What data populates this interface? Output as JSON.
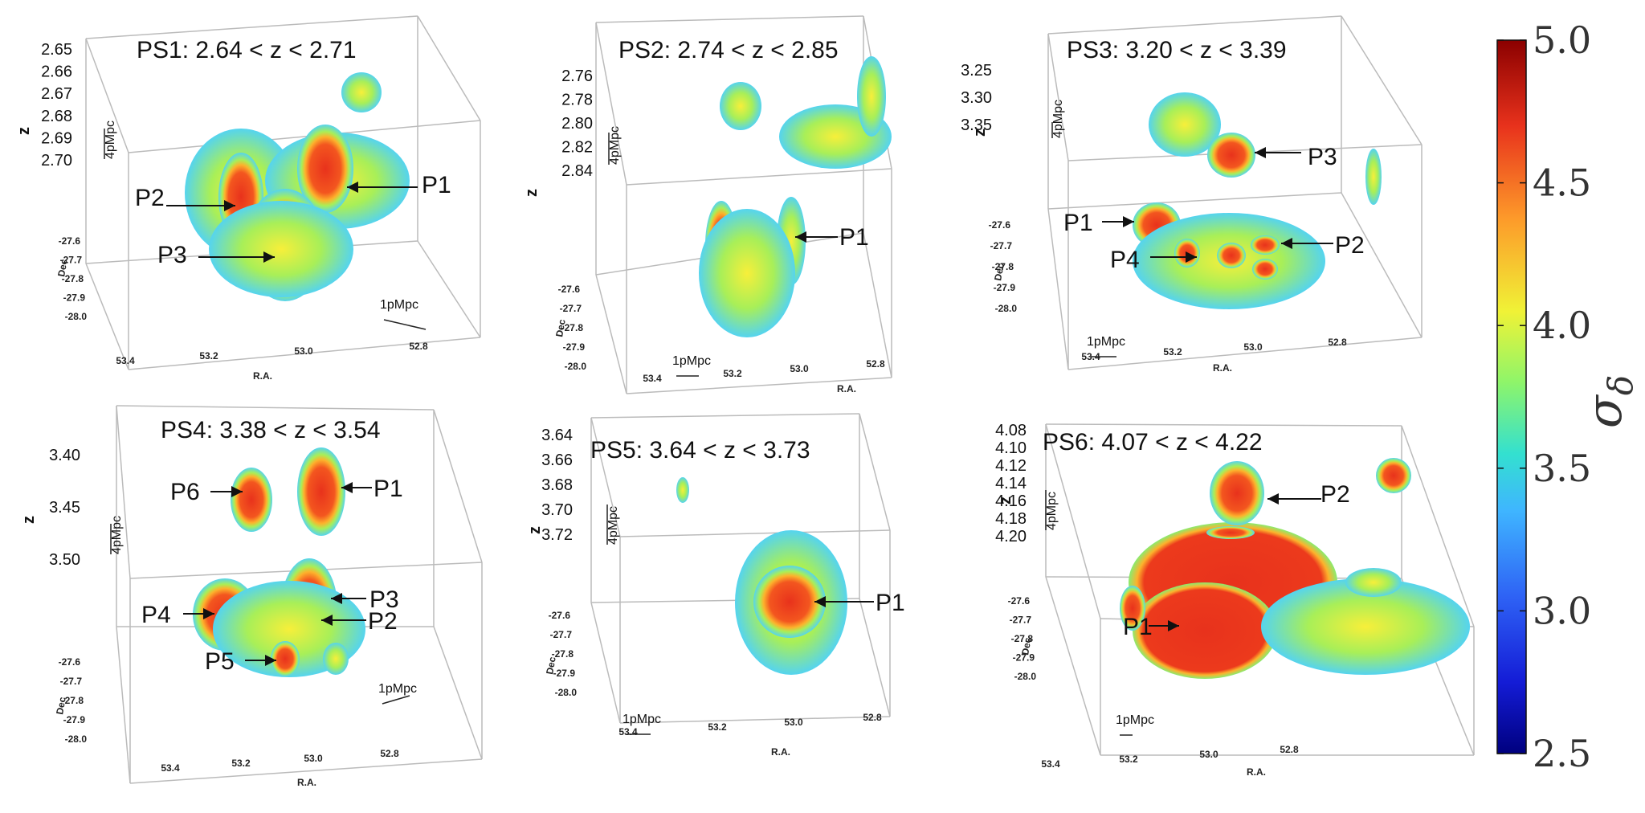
{
  "chart_data": {
    "type": "3d-isosurface-panels",
    "colorbar": {
      "label": "σ",
      "label_sub": "δ",
      "min": 2.5,
      "max": 5.0,
      "ticks": [
        "5.0",
        "4.5",
        "4.0",
        "3.5",
        "3.0",
        "2.5"
      ],
      "colors": [
        "#8b0000",
        "#e8321c",
        "#fd9a2a",
        "#f0f236",
        "#8ef56a",
        "#33e0d0",
        "#3fb5ff",
        "#2e62f5",
        "#141cd6",
        "#00007f"
      ]
    },
    "axes_labels": {
      "x": "R.A.",
      "y": "Dec",
      "z": "z"
    },
    "scale_labels": {
      "transverse": "1pMpc",
      "los": "4pMpc"
    },
    "panels": [
      {
        "id": "PS1",
        "title": "PS1: 2.64 < z < 2.71",
        "z_ticks": [
          "2.65",
          "2.66",
          "2.67",
          "2.68",
          "2.69",
          "2.70"
        ],
        "dec_ticks": [
          "-27.6",
          "-27.7",
          "-27.8",
          "-27.9",
          "-28.0"
        ],
        "ra_ticks": [
          "53.4",
          "53.2",
          "53.0",
          "52.8"
        ],
        "peaks": [
          "P2",
          "P1",
          "P3"
        ]
      },
      {
        "id": "PS2",
        "title": "PS2: 2.74 < z < 2.85",
        "z_ticks": [
          "2.76",
          "2.78",
          "2.80",
          "2.82",
          "2.84"
        ],
        "dec_ticks": [
          "-27.6",
          "-27.7",
          "-27.8",
          "-27.9",
          "-28.0"
        ],
        "ra_ticks": [
          "53.4",
          "53.2",
          "53.0",
          "52.8"
        ],
        "peaks": [
          "P1"
        ]
      },
      {
        "id": "PS3",
        "title": "PS3: 3.20 < z < 3.39",
        "z_ticks": [
          "3.25",
          "3.30",
          "3.35"
        ],
        "dec_ticks": [
          "-27.6",
          "-27.7",
          "-27.8",
          "-27.9",
          "-28.0"
        ],
        "ra_ticks": [
          "53.4",
          "53.2",
          "53.0",
          "52.8"
        ],
        "peaks": [
          "P3",
          "P1",
          "P4",
          "P2"
        ]
      },
      {
        "id": "PS4",
        "title": "PS4: 3.38 < z < 3.54",
        "z_ticks": [
          "3.40",
          "3.45",
          "3.50"
        ],
        "dec_ticks": [
          "-27.6",
          "-27.7",
          "-27.8",
          "-27.9",
          "-28.0"
        ],
        "ra_ticks": [
          "53.4",
          "53.2",
          "53.0",
          "52.8"
        ],
        "peaks": [
          "P6",
          "P1",
          "P4",
          "P3",
          "P2",
          "P5"
        ]
      },
      {
        "id": "PS5",
        "title": "PS5: 3.64 < z < 3.73",
        "z_ticks": [
          "3.64",
          "3.66",
          "3.68",
          "3.70",
          "3.72"
        ],
        "dec_ticks": [
          "-27.6",
          "-27.7",
          "-27.8",
          "-27.9",
          "-28.0"
        ],
        "ra_ticks": [
          "53.4",
          "53.2",
          "53.0",
          "52.8"
        ],
        "peaks": [
          "P1"
        ]
      },
      {
        "id": "PS6",
        "title": "PS6: 4.07 < z < 4.22",
        "z_ticks": [
          "4.08",
          "4.10",
          "4.12",
          "4.14",
          "4.16",
          "4.18",
          "4.20"
        ],
        "dec_ticks": [
          "-27.6",
          "-27.7",
          "-27.8",
          "-27.9",
          "-28.0"
        ],
        "ra_ticks": [
          "53.4",
          "53.2",
          "53.0",
          "52.8"
        ],
        "peaks": [
          "P2",
          "P1"
        ]
      }
    ]
  }
}
